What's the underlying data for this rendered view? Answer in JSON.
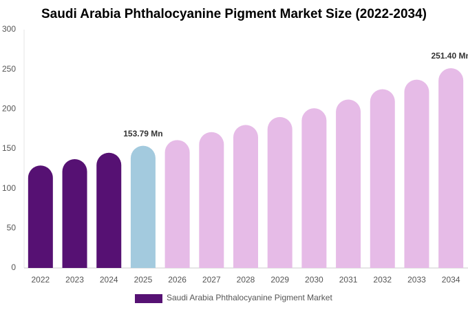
{
  "chart_data": {
    "type": "bar",
    "title": "Saudi Arabia Phthalocyanine Pigment Market Size (2022-2034)",
    "categories": [
      "2022",
      "2023",
      "2024",
      "2025",
      "2026",
      "2027",
      "2028",
      "2029",
      "2030",
      "2031",
      "2032",
      "2033",
      "2034"
    ],
    "series": [
      {
        "name": "Saudi Arabia Phthalocyanine Pigment Market",
        "color": "#561173",
        "values": [
          129,
          137,
          145,
          153.79,
          161,
          171,
          180,
          190,
          201,
          212,
          225,
          237,
          251.4
        ],
        "value_labels": [
          null,
          null,
          null,
          "153.79 Mn",
          null,
          null,
          null,
          null,
          null,
          null,
          null,
          null,
          "251.40 Mn"
        ],
        "colors": [
          "#561173",
          "#561173",
          "#561173",
          "#a3cade",
          "#e6bbe7",
          "#e6bbe7",
          "#e6bbe7",
          "#e6bbe7",
          "#e6bbe7",
          "#e6bbe7",
          "#e6bbe7",
          "#e6bbe7",
          "#e6bbe7"
        ]
      }
    ],
    "ylim": [
      0,
      300
    ],
    "yticks": [
      0,
      50,
      100,
      150,
      200,
      250,
      300
    ],
    "grid": false
  }
}
